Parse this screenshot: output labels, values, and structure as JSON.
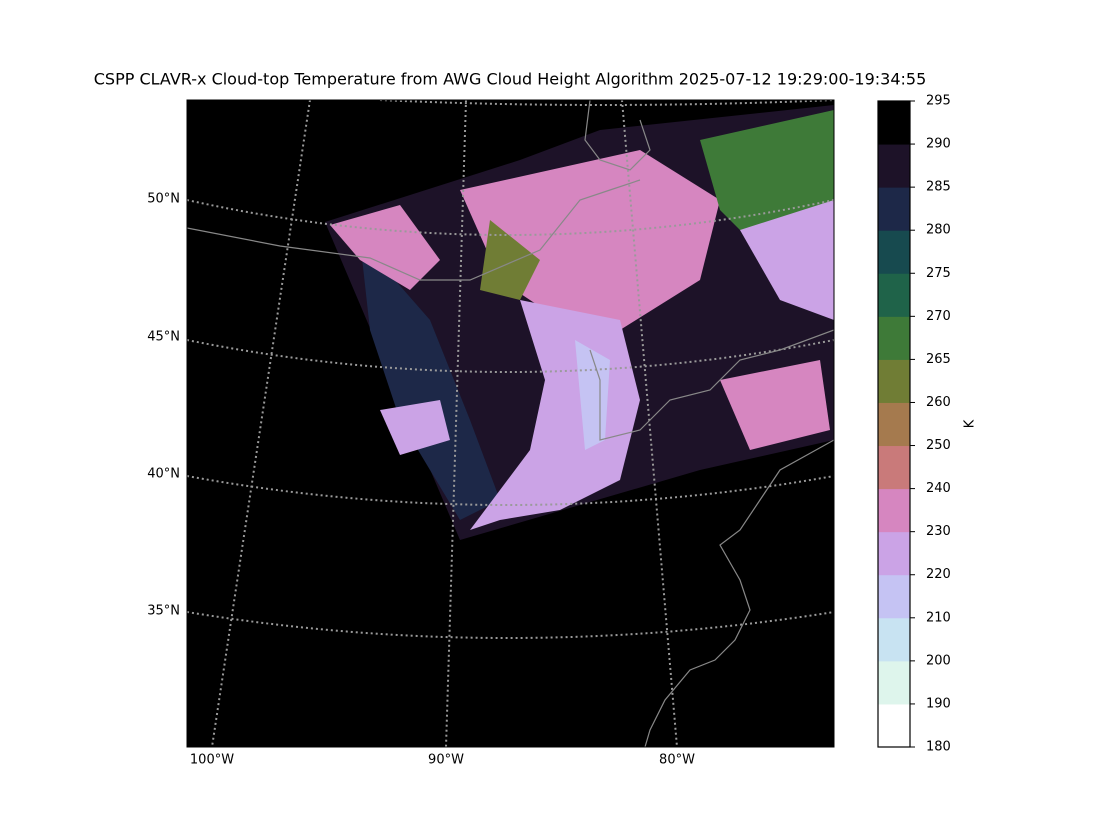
{
  "title": "CSPP CLAVR-x Cloud-top Temperature from AWG Cloud Height Algorithm 2025-07-12 19:29:00-19:34:55",
  "map": {
    "lat_labels": [
      "50°N",
      "45°N",
      "40°N",
      "35°N"
    ],
    "lon_labels": [
      "100°W",
      "90°W",
      "80°W"
    ]
  },
  "colorbar": {
    "label": "K",
    "ticks": [
      180,
      190,
      200,
      210,
      220,
      230,
      240,
      250,
      260,
      265,
      270,
      275,
      280,
      285,
      290,
      295
    ],
    "colors": [
      "#ffffff",
      "#def5ec",
      "#c8e3f2",
      "#c5c3f3",
      "#cba3e6",
      "#d686c0",
      "#c97a7a",
      "#a57a4e",
      "#707d35",
      "#3e7a38",
      "#1f6349",
      "#174a4f",
      "#1d2848",
      "#1d1228",
      "#000000"
    ]
  }
}
